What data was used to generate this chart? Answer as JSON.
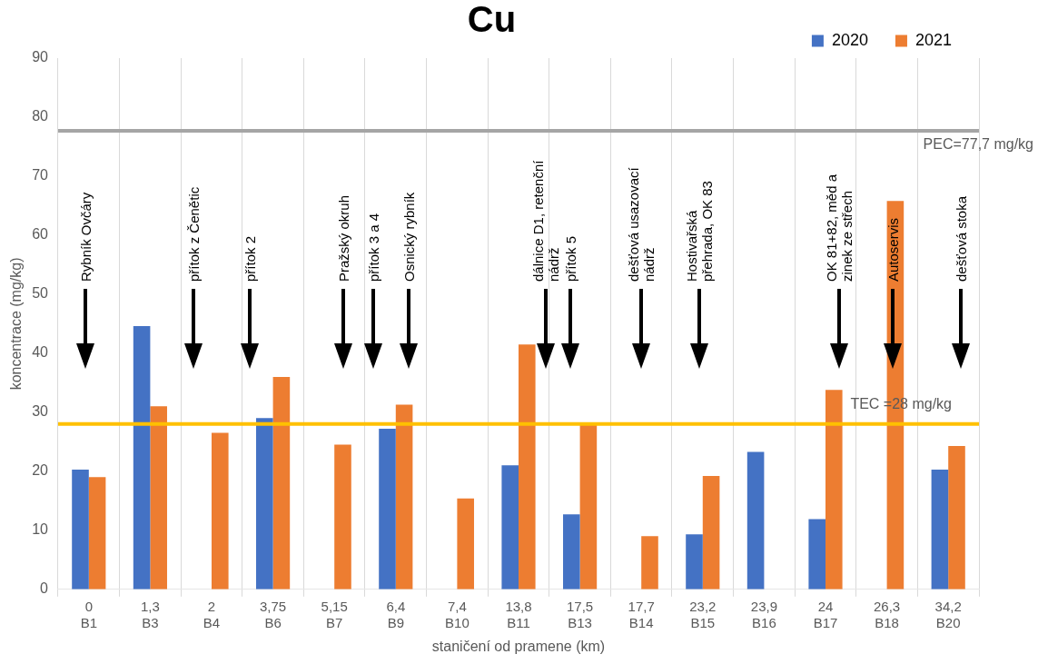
{
  "chart_data": {
    "type": "bar",
    "title": "Cu",
    "xlabel": "staničení od pramene (km)",
    "ylabel": "koncentrace (mg/kg)",
    "categories": [
      "0\nB1",
      "1,3\nB3",
      "2\nB4",
      "3,75\nB6",
      "5,15\nB7",
      "6,4\nB9",
      "7,4\nB10",
      "13,8\nB11",
      "17,5\nB13",
      "17,7\nB14",
      "23,2\nB15",
      "23,9\nB16",
      "24\nB17",
      "26,3\nB18",
      "34,2\nB20"
    ],
    "series": [
      {
        "name": "2020",
        "color": "#4472c4",
        "values": [
          20.3,
          44.6,
          null,
          29,
          null,
          27.2,
          null,
          21,
          12.7,
          null,
          9.3,
          23.3,
          11.9,
          null,
          20.3
        ]
      },
      {
        "name": "2021",
        "color": "#ed7d31",
        "values": [
          19,
          31,
          26.5,
          36,
          24.5,
          31.3,
          15.4,
          41.5,
          28,
          9,
          19.2,
          null,
          33.8,
          65.8,
          24.3
        ]
      }
    ],
    "ylim": [
      0,
      90
    ],
    "yticks": [
      0,
      10,
      20,
      30,
      40,
      50,
      60,
      70,
      80,
      90
    ],
    "grid": "x",
    "legend": "top right",
    "ref_lines": [
      {
        "axis": "y",
        "value": 77.7,
        "label": "PEC=77,7 mg/kg",
        "color": "#a5a5a5"
      },
      {
        "axis": "y",
        "value": 28,
        "label": "TEC =28 mg/kg",
        "color": "#ffc000"
      }
    ],
    "annotations": [
      "Rybník Ovčáry",
      "přítok z Čenětic",
      "přítok 2",
      "Pražský okruh",
      "přítok 3 a 4",
      "Osnický rybník",
      "dálnice D1, retenční\nnádrž",
      "přítok 5",
      "dešťová usazovací\nnádrž",
      "Hostivařská\npřehrada, OK 83",
      "OK 81+82, měd a\nzinek ze střech",
      "Autoservis",
      "dešťová stoka"
    ]
  }
}
